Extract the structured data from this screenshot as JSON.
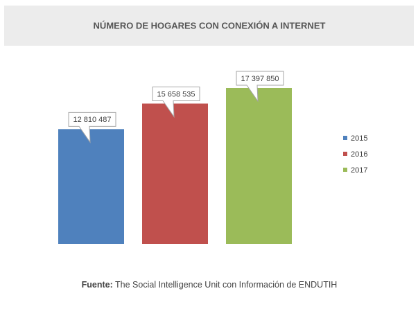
{
  "chart_data": {
    "type": "bar",
    "title": "NÚMERO DE HOGARES CON CONEXIÓN A INTERNET",
    "series": [
      {
        "name": "2015",
        "color": "#4f81bd",
        "values": [
          12810487
        ],
        "value_labels": [
          "12 810 487"
        ]
      },
      {
        "name": "2016",
        "color": "#c0504d",
        "values": [
          15658535
        ],
        "value_labels": [
          "15 658 535"
        ]
      },
      {
        "name": "2017",
        "color": "#9bbb59",
        "values": [
          17397850
        ],
        "value_labels": [
          "17 397 850"
        ]
      }
    ],
    "legend": "right",
    "source_label": "Fuente:",
    "source": "The Social Intelligence Unit con Información de ENDUTIH"
  }
}
